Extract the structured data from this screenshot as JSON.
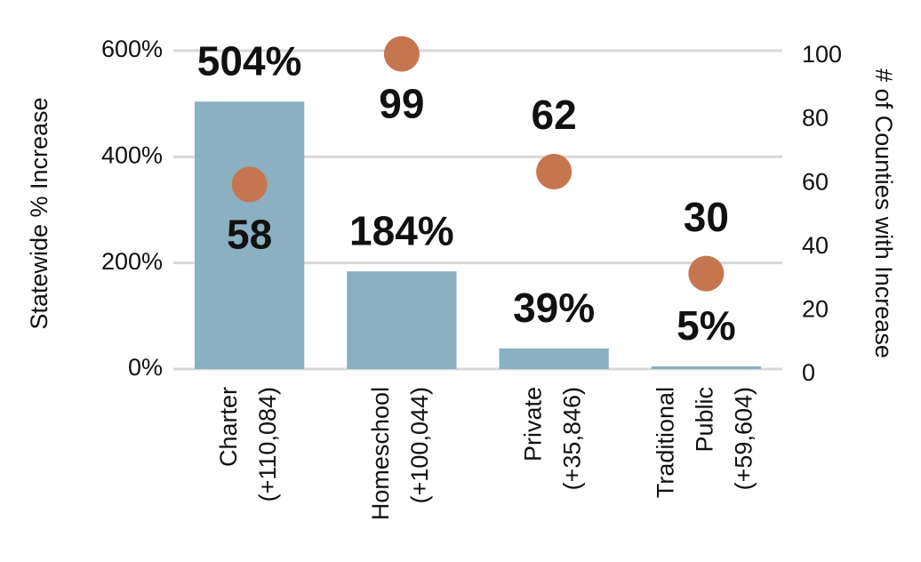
{
  "chart_data": {
    "type": "bar_dot",
    "y_label": "Statewide % Increase",
    "y2_label": "# of Counties with Increase",
    "categories": [
      [
        "Charter",
        "(+110,084)"
      ],
      [
        "Homeschool",
        "(+100,044)"
      ],
      [
        "Private",
        "(+35,846)"
      ],
      [
        "Traditional",
        "Public",
        "(+59,604)"
      ]
    ],
    "series": [
      {
        "name": "Statewide % Increase",
        "type": "bar",
        "color": "#8ab0c2",
        "label_color": "#506a76",
        "values": [
          504,
          184,
          39,
          5
        ],
        "value_labels": [
          "504%",
          "184%",
          "39%",
          "5%"
        ]
      },
      {
        "name": "# of Counties with Increase",
        "type": "dot",
        "axis": "y2",
        "color": "#c6764f",
        "values": [
          58,
          99,
          62,
          30
        ]
      }
    ],
    "ylim": [
      0,
      600
    ],
    "yticks": [
      {
        "value": 0,
        "label": "0%"
      },
      {
        "value": 200,
        "label": "200%"
      },
      {
        "value": 400,
        "label": "400%"
      },
      {
        "value": 600,
        "label": "600%"
      }
    ],
    "y2lim": [
      0,
      100
    ],
    "y2ticks": [
      0,
      20,
      40,
      60,
      80,
      100
    ],
    "grid": true
  }
}
